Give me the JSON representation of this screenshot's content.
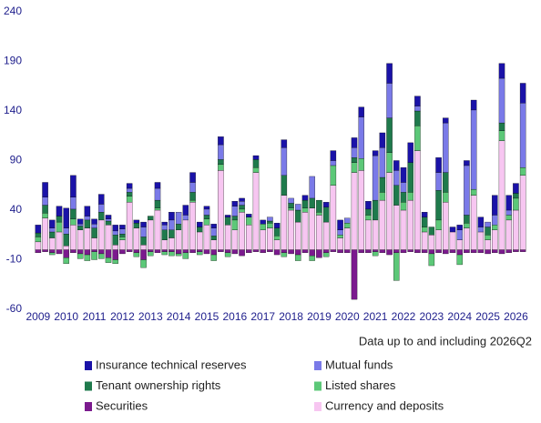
{
  "chart_data": {
    "type": "stacked_bar",
    "note": "Data up to and including 2026Q2",
    "categories": [
      "2009",
      null,
      null,
      null,
      "2010",
      null,
      null,
      null,
      "2011",
      null,
      null,
      null,
      "2012",
      null,
      null,
      null,
      "2013",
      null,
      null,
      null,
      "2014",
      null,
      null,
      null,
      "2015",
      null,
      null,
      null,
      "2016",
      null,
      null,
      null,
      "2017",
      null,
      null,
      null,
      "2018",
      null,
      null,
      null,
      "2019",
      null,
      null,
      null,
      "2020",
      null,
      null,
      null,
      "2021",
      null,
      null,
      null,
      "2022",
      null,
      null,
      null,
      "2023",
      null,
      null,
      null,
      "2024",
      null,
      null,
      null,
      "2025",
      null,
      null,
      null,
      "2026",
      null
    ],
    "ylim": [
      -60,
      240
    ],
    "yticks": [
      -60,
      -10,
      40,
      90,
      140,
      190,
      240
    ],
    "grid": false,
    "series": [
      {
        "name": "Insurance technical reserves",
        "color": "#1a12a8",
        "values": [
          8,
          15,
          8,
          10,
          20,
          22,
          5,
          10,
          5,
          10,
          4,
          6,
          4,
          5,
          3,
          5,
          0,
          6,
          3,
          8,
          0,
          10,
          10,
          5,
          3,
          4,
          8,
          2,
          5,
          3,
          3,
          4,
          4,
          0,
          5,
          8,
          0,
          0,
          5,
          0,
          0,
          5,
          10,
          10,
          0,
          10,
          10,
          8,
          5,
          15,
          20,
          10,
          15,
          20,
          10,
          5,
          0,
          15,
          5,
          5,
          5,
          5,
          10,
          10,
          0,
          20,
          15,
          15,
          10,
          20
        ]
      },
      {
        "name": "Mutual funds",
        "color": "#7a7ae8",
        "values": [
          0,
          8,
          4,
          0,
          6,
          12,
          2,
          4,
          4,
          8,
          2,
          4,
          5,
          4,
          0,
          10,
          0,
          12,
          5,
          10,
          12,
          5,
          10,
          0,
          6,
          8,
          15,
          0,
          10,
          4,
          0,
          0,
          0,
          4,
          0,
          28,
          5,
          6,
          0,
          22,
          0,
          0,
          5,
          5,
          5,
          10,
          42,
          0,
          45,
          30,
          35,
          15,
          10,
          0,
          5,
          0,
          0,
          18,
          50,
          0,
          10,
          50,
          80,
          5,
          5,
          10,
          45,
          5,
          0,
          65
        ]
      },
      {
        "name": "Tenant ownership rights",
        "color": "#1f7a4c",
        "values": [
          4,
          8,
          6,
          6,
          12,
          10,
          4,
          8,
          10,
          8,
          4,
          10,
          3,
          4,
          5,
          8,
          4,
          8,
          10,
          8,
          6,
          0,
          8,
          5,
          4,
          4,
          5,
          8,
          4,
          4,
          0,
          8,
          0,
          2,
          8,
          20,
          5,
          12,
          8,
          10,
          12,
          15,
          0,
          0,
          0,
          5,
          0,
          6,
          20,
          15,
          35,
          20,
          10,
          30,
          15,
          10,
          8,
          30,
          20,
          0,
          0,
          8,
          0,
          0,
          8,
          0,
          8,
          0,
          5,
          0
        ]
      },
      {
        "name": "Listed shares",
        "color": "#5cc878",
        "values": [
          5,
          5,
          -2,
          10,
          -6,
          6,
          -5,
          -6,
          -8,
          -5,
          -5,
          -4,
          3,
          6,
          -4,
          -8,
          -4,
          2,
          -3,
          -4,
          -2,
          -6,
          2,
          -3,
          6,
          -6,
          6,
          -4,
          10,
          3,
          8,
          5,
          6,
          5,
          4,
          -4,
          2,
          -6,
          4,
          -5,
          3,
          -4,
          20,
          3,
          5,
          10,
          12,
          5,
          -4,
          8,
          20,
          -28,
          8,
          8,
          25,
          5,
          -12,
          10,
          10,
          0,
          -10,
          5,
          6,
          0,
          5,
          5,
          10,
          5,
          12,
          8
        ]
      },
      {
        "name": "Securities",
        "color": "#7b1a8e",
        "values": [
          -3,
          -2,
          -3,
          -4,
          -8,
          -3,
          -4,
          -5,
          -2,
          -4,
          -8,
          -10,
          -4,
          -2,
          -3,
          -10,
          -2,
          -3,
          -2,
          -2,
          -4,
          -3,
          -3,
          -2,
          -4,
          -5,
          -2,
          -3,
          -4,
          -6,
          -3,
          -2,
          -3,
          -2,
          -5,
          -3,
          -4,
          -5,
          -3,
          -6,
          -8,
          -3,
          -2,
          -3,
          -3,
          -50,
          -3,
          -3,
          -2,
          -3,
          -5,
          -3,
          -3,
          -2,
          -3,
          -3,
          -4,
          -3,
          -4,
          -3,
          -5,
          -3,
          -3,
          -3,
          -4,
          -3,
          -4,
          -3,
          -2,
          -2
        ]
      },
      {
        "name": "Currency and deposits",
        "color": "#f7c6f1",
        "values": [
          8,
          32,
          12,
          18,
          4,
          25,
          20,
          22,
          12,
          30,
          25,
          5,
          10,
          48,
          22,
          5,
          30,
          40,
          10,
          12,
          20,
          30,
          48,
          18,
          25,
          10,
          80,
          25,
          20,
          38,
          25,
          78,
          20,
          22,
          10,
          55,
          40,
          28,
          38,
          42,
          35,
          28,
          65,
          12,
          22,
          78,
          80,
          30,
          30,
          50,
          78,
          45,
          40,
          50,
          100,
          18,
          15,
          20,
          48,
          18,
          10,
          22,
          55,
          18,
          10,
          20,
          110,
          30,
          40,
          75
        ]
      }
    ]
  }
}
